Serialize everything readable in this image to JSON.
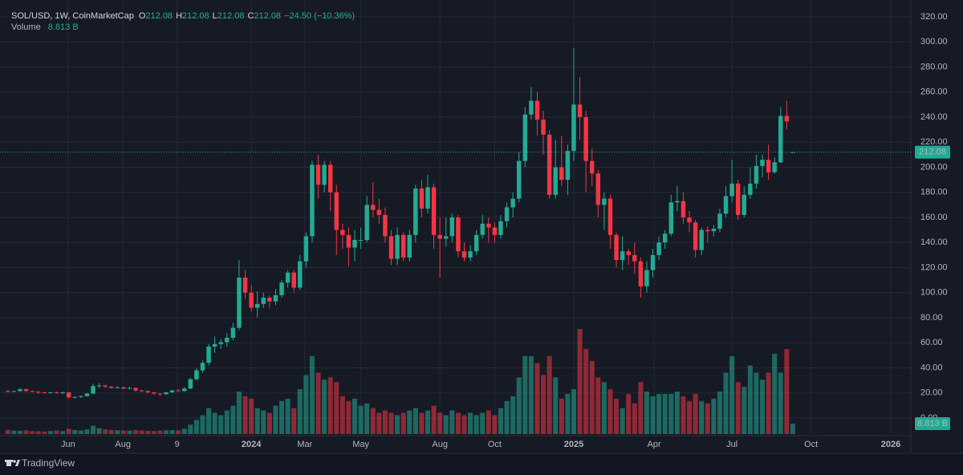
{
  "chart_data": {
    "type": "candlestick",
    "title": "SOL/USD, 1W, CoinMarketCap",
    "ohlc_labels": [
      "O",
      "H",
      "L",
      "C"
    ],
    "change": "−24.50 (−10.36%)",
    "volume_legend": {
      "label": "Volume",
      "value": "8.813 B"
    },
    "up_color": "#22ab94",
    "down_color": "#f23645",
    "ylim": [
      -12.8,
      333.4
    ],
    "yticks": [
      {
        "value": 0,
        "label": "0.00"
      },
      {
        "value": 20,
        "label": "20.00"
      },
      {
        "value": 40,
        "label": "40.00"
      },
      {
        "value": 60,
        "label": "60.00"
      },
      {
        "value": 80,
        "label": "80.00"
      },
      {
        "value": 100,
        "label": "100.00"
      },
      {
        "value": 120,
        "label": "120.00"
      },
      {
        "value": 140,
        "label": "140.00"
      },
      {
        "value": 160,
        "label": "160.00"
      },
      {
        "value": 180,
        "label": "180.00"
      },
      {
        "value": 200,
        "label": "200.00"
      },
      {
        "value": 220,
        "label": "220.00"
      },
      {
        "value": 240,
        "label": "240.00"
      },
      {
        "value": 260,
        "label": "260.00"
      },
      {
        "value": 280,
        "label": "280.00"
      },
      {
        "value": 300,
        "label": "300.00"
      },
      {
        "value": 320,
        "label": "320.00"
      }
    ],
    "xlim": [
      -1.3,
      148.4
    ],
    "xticks": [
      {
        "value": 9.9,
        "label": "Jun"
      },
      {
        "value": 18.9,
        "label": "Aug"
      },
      {
        "value": 27.8,
        "label": "9"
      },
      {
        "value": 40,
        "label": "2024"
      },
      {
        "value": 48.8,
        "label": "Mar"
      },
      {
        "value": 58,
        "label": "May"
      },
      {
        "value": 71,
        "label": "Aug"
      },
      {
        "value": 80,
        "label": "Oct"
      },
      {
        "value": 93,
        "label": "2025"
      },
      {
        "value": 106.2,
        "label": "Apr"
      },
      {
        "value": 119,
        "label": "Jul"
      },
      {
        "value": 132,
        "label": "Oct"
      },
      {
        "value": 145.1,
        "label": "2026"
      }
    ],
    "grid": true,
    "candles": [
      [
        21.5,
        22.5,
        20.5,
        21.0
      ],
      [
        21.0,
        22.0,
        20.5,
        21.5
      ],
      [
        21.5,
        24.0,
        21.0,
        23.0
      ],
      [
        23.0,
        23.5,
        21.0,
        21.5
      ],
      [
        21.5,
        22.0,
        20.5,
        21.0
      ],
      [
        21.0,
        21.5,
        19.5,
        20.5
      ],
      [
        20.5,
        21.0,
        19.5,
        20.0
      ],
      [
        20.0,
        21.0,
        19.5,
        20.5
      ],
      [
        20.5,
        21.0,
        19.5,
        20.0
      ],
      [
        20.0,
        21.0,
        19.0,
        20.5
      ],
      [
        20.5,
        20.8,
        15.5,
        16.5
      ],
      [
        16.5,
        17.5,
        15.5,
        16.8
      ],
      [
        16.8,
        18.0,
        16.0,
        17.5
      ],
      [
        17.5,
        20.0,
        17.0,
        19.5
      ],
      [
        19.5,
        27.5,
        19.0,
        25.5
      ],
      [
        25.5,
        28.0,
        24.0,
        26.0
      ],
      [
        26.0,
        26.5,
        24.0,
        25.0
      ],
      [
        25.0,
        25.5,
        23.5,
        24.0
      ],
      [
        24.0,
        25.5,
        23.5,
        24.5
      ],
      [
        24.5,
        25.0,
        23.0,
        23.5
      ],
      [
        23.5,
        25.0,
        23.0,
        24.0
      ],
      [
        24.0,
        24.5,
        21.0,
        22.0
      ],
      [
        22.0,
        22.5,
        20.5,
        21.5
      ],
      [
        21.5,
        22.0,
        19.5,
        20.5
      ],
      [
        20.5,
        21.0,
        18.5,
        19.5
      ],
      [
        19.5,
        20.0,
        17.5,
        19.0
      ],
      [
        19.0,
        21.0,
        18.5,
        20.5
      ],
      [
        20.5,
        22.5,
        20.0,
        22.0
      ],
      [
        22.0,
        23.0,
        21.0,
        21.5
      ],
      [
        21.5,
        24.5,
        21.0,
        23.5
      ],
      [
        23.5,
        32.0,
        23.0,
        31.0
      ],
      [
        31.0,
        40.0,
        30.0,
        38.0
      ],
      [
        38.0,
        46.0,
        36.0,
        44.0
      ],
      [
        44.0,
        59.0,
        42.0,
        57.0
      ],
      [
        57.0,
        65.0,
        52.0,
        59.0
      ],
      [
        59.0,
        63.0,
        55.0,
        60.5
      ],
      [
        60.5,
        68.0,
        57.0,
        64.0
      ],
      [
        64.0,
        76.0,
        62.0,
        72.0
      ],
      [
        72.0,
        126.0,
        70.0,
        112.0
      ],
      [
        112.0,
        118.0,
        95.0,
        100.0
      ],
      [
        100.0,
        106.0,
        85.0,
        88.0
      ],
      [
        88.0,
        101.0,
        80.0,
        91.0
      ],
      [
        91.0,
        100.0,
        88.0,
        96.0
      ],
      [
        96.0,
        98.0,
        88.0,
        93.0
      ],
      [
        93.0,
        103.0,
        90.0,
        98.0
      ],
      [
        98.0,
        110.0,
        96.0,
        108.0
      ],
      [
        108.0,
        118.0,
        104.0,
        116.0
      ],
      [
        116.0,
        118.0,
        100.0,
        104.0
      ],
      [
        104.0,
        130.0,
        102.0,
        125.0
      ],
      [
        125.0,
        148.0,
        120.0,
        145.0
      ],
      [
        145.0,
        205.0,
        140.0,
        202.0
      ],
      [
        202.0,
        210.0,
        175.0,
        186.0
      ],
      [
        186.0,
        205.0,
        180.0,
        202.0
      ],
      [
        202.0,
        205.0,
        165.0,
        180.0
      ],
      [
        180.0,
        186.0,
        130.0,
        150.0
      ],
      [
        150.0,
        155.0,
        135.0,
        146.0
      ],
      [
        146.0,
        152.0,
        121.0,
        136.0
      ],
      [
        136.0,
        150.0,
        125.0,
        142.0
      ],
      [
        142.0,
        152.0,
        135.0,
        142.0
      ],
      [
        142.0,
        177.0,
        140.0,
        170.0
      ],
      [
        170.0,
        188.0,
        160.0,
        166.0
      ],
      [
        166.0,
        175.0,
        155.0,
        162.0
      ],
      [
        162.0,
        168.0,
        140.0,
        145.0
      ],
      [
        145.0,
        150.0,
        122.0,
        127.0
      ],
      [
        127.0,
        152.0,
        122.0,
        146.0
      ],
      [
        146.0,
        148.0,
        125.0,
        128.0
      ],
      [
        128.0,
        150.0,
        125.0,
        146.0
      ],
      [
        146.0,
        186.0,
        140.0,
        183.0
      ],
      [
        183.0,
        190.0,
        160.0,
        167.0
      ],
      [
        167.0,
        194.0,
        163.0,
        184.0
      ],
      [
        184.0,
        187.0,
        135.0,
        146.0
      ],
      [
        146.0,
        160.0,
        112.0,
        143.0
      ],
      [
        143.0,
        160.0,
        137.0,
        145.0
      ],
      [
        145.0,
        163.0,
        140.0,
        160.0
      ],
      [
        160.0,
        162.0,
        128.0,
        133.0
      ],
      [
        133.0,
        140.0,
        125.0,
        128.0
      ],
      [
        128.0,
        138.0,
        125.0,
        133.0
      ],
      [
        133.0,
        150.0,
        130.0,
        146.0
      ],
      [
        146.0,
        162.0,
        143.0,
        155.0
      ],
      [
        155.0,
        160.0,
        140.0,
        152.0
      ],
      [
        152.0,
        156.0,
        140.0,
        146.0
      ],
      [
        146.0,
        162.0,
        143.0,
        157.0
      ],
      [
        157.0,
        172.0,
        152.0,
        168.0
      ],
      [
        168.0,
        180.0,
        160.0,
        175.0
      ],
      [
        175.0,
        212.0,
        172.0,
        205.0
      ],
      [
        205.0,
        248.0,
        200.0,
        242.0
      ],
      [
        242.0,
        264.0,
        238.0,
        253.0
      ],
      [
        253.0,
        260.0,
        225.0,
        238.0
      ],
      [
        238.0,
        245.0,
        210.0,
        226.0
      ],
      [
        226.0,
        230.0,
        175.0,
        178.0
      ],
      [
        178.0,
        222.0,
        175.0,
        200.0
      ],
      [
        200.0,
        225.0,
        185.0,
        190.0
      ],
      [
        190.0,
        218.0,
        178.0,
        213.0
      ],
      [
        213.0,
        295.0,
        205.0,
        250.0
      ],
      [
        250.0,
        272.0,
        222.0,
        240.0
      ],
      [
        240.0,
        245.0,
        180.0,
        205.0
      ],
      [
        205.0,
        215.0,
        185.0,
        195.0
      ],
      [
        195.0,
        198.0,
        160.0,
        170.0
      ],
      [
        170.0,
        180.0,
        150.0,
        175.0
      ],
      [
        175.0,
        178.0,
        135.0,
        146.0
      ],
      [
        146.0,
        148.0,
        120.0,
        126.0
      ],
      [
        126.0,
        145.0,
        118.0,
        133.0
      ],
      [
        133.0,
        135.0,
        122.0,
        130.0
      ],
      [
        130.0,
        140.0,
        115.0,
        125.0
      ],
      [
        125.0,
        128.0,
        96.0,
        105.0
      ],
      [
        105.0,
        125.0,
        100.0,
        118.0
      ],
      [
        118.0,
        135.0,
        112.0,
        130.0
      ],
      [
        130.0,
        145.0,
        126.0,
        140.0
      ],
      [
        140.0,
        150.0,
        135.0,
        147.0
      ],
      [
        147.0,
        178.0,
        145.0,
        172.0
      ],
      [
        172.0,
        185.0,
        165.0,
        173.0
      ],
      [
        173.0,
        180.0,
        155.0,
        160.0
      ],
      [
        160.0,
        165.0,
        148.0,
        156.0
      ],
      [
        156.0,
        158.0,
        128.0,
        134.0
      ],
      [
        134.0,
        152.0,
        130.0,
        150.0
      ],
      [
        150.0,
        153.0,
        140.0,
        149.0
      ],
      [
        149.0,
        154.0,
        145.0,
        151.0
      ],
      [
        151.0,
        167.0,
        148.0,
        163.0
      ],
      [
        163.0,
        185.0,
        160.0,
        177.0
      ],
      [
        177.0,
        206.0,
        172.0,
        187.0
      ],
      [
        187.0,
        190.0,
        158.0,
        162.0
      ],
      [
        162.0,
        185.0,
        160.0,
        178.0
      ],
      [
        178.0,
        200.0,
        175.0,
        187.0
      ],
      [
        187.0,
        210.0,
        183.0,
        201.0
      ],
      [
        201.0,
        210.0,
        192.0,
        206.0
      ],
      [
        206.0,
        218.0,
        190.0,
        196.0
      ],
      [
        196.0,
        208.0,
        195.0,
        204.0
      ],
      [
        204.0,
        248.0,
        203.0,
        241.0
      ],
      [
        241.0,
        253.0,
        230.0,
        236.58
      ],
      [
        212.08,
        212.08,
        212.08,
        212.08
      ]
    ],
    "volumes": [
      3.5,
      3,
      2.8,
      3.2,
      2.5,
      2.4,
      2.2,
      2.6,
      3,
      2.5,
      4.5,
      3.5,
      3,
      4,
      7,
      5,
      4,
      3.5,
      3.2,
      3,
      3,
      3.5,
      3.2,
      2.8,
      2.6,
      3,
      3.2,
      3.4,
      3.1,
      4.5,
      8,
      12,
      16,
      22,
      18,
      16,
      20,
      24,
      36,
      32,
      30,
      22,
      20,
      18,
      24,
      28,
      30,
      22,
      38,
      50,
      66,
      52,
      46,
      48,
      44,
      32,
      28,
      30,
      24,
      26,
      22,
      18,
      20,
      18,
      16,
      18,
      20,
      22,
      18,
      20,
      24,
      18,
      16,
      20,
      18,
      16,
      18,
      16,
      18,
      20,
      16,
      22,
      28,
      32,
      48,
      66,
      66,
      60,
      50,
      66,
      48,
      30,
      34,
      38,
      89,
      72,
      62,
      48,
      44,
      38,
      30,
      22,
      34,
      26,
      44,
      36,
      32,
      34,
      34,
      34,
      36,
      32,
      28,
      34,
      28,
      26,
      30,
      36,
      52,
      66,
      44,
      40,
      58,
      52,
      46,
      52,
      68,
      52,
      72,
      8.813
    ],
    "footer": "TradingView"
  }
}
